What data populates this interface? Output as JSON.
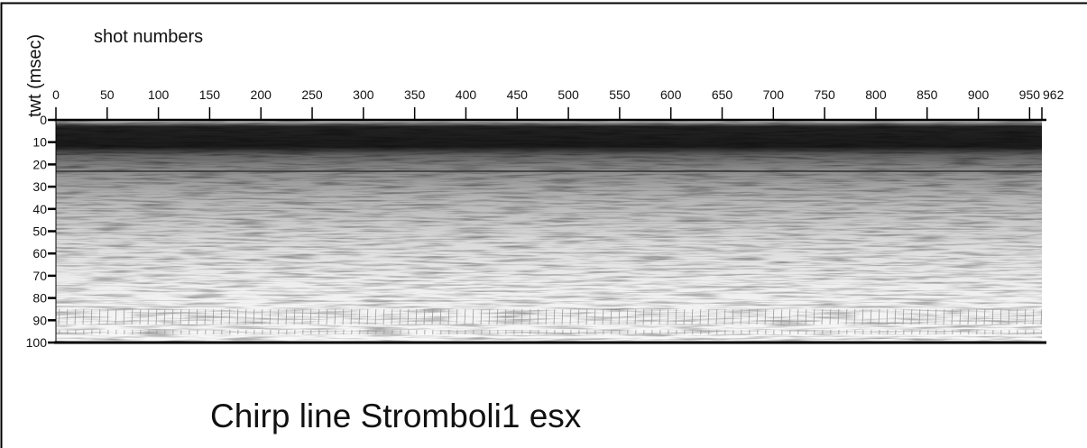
{
  "chart_data": {
    "type": "seismic",
    "title": "Chirp line Stromboli1 esx",
    "xlabel": "shot numbers",
    "ylabel": "twt (msec)",
    "xlim": [
      0,
      962
    ],
    "xticks": [
      0,
      50,
      100,
      150,
      200,
      250,
      300,
      350,
      400,
      450,
      500,
      550,
      600,
      650,
      700,
      750,
      800,
      850,
      900,
      950,
      962
    ],
    "ylim": [
      0,
      100
    ],
    "yticks": [
      0,
      10,
      20,
      30,
      40,
      50,
      60,
      70,
      80,
      90,
      100
    ],
    "y_inverted": true
  }
}
